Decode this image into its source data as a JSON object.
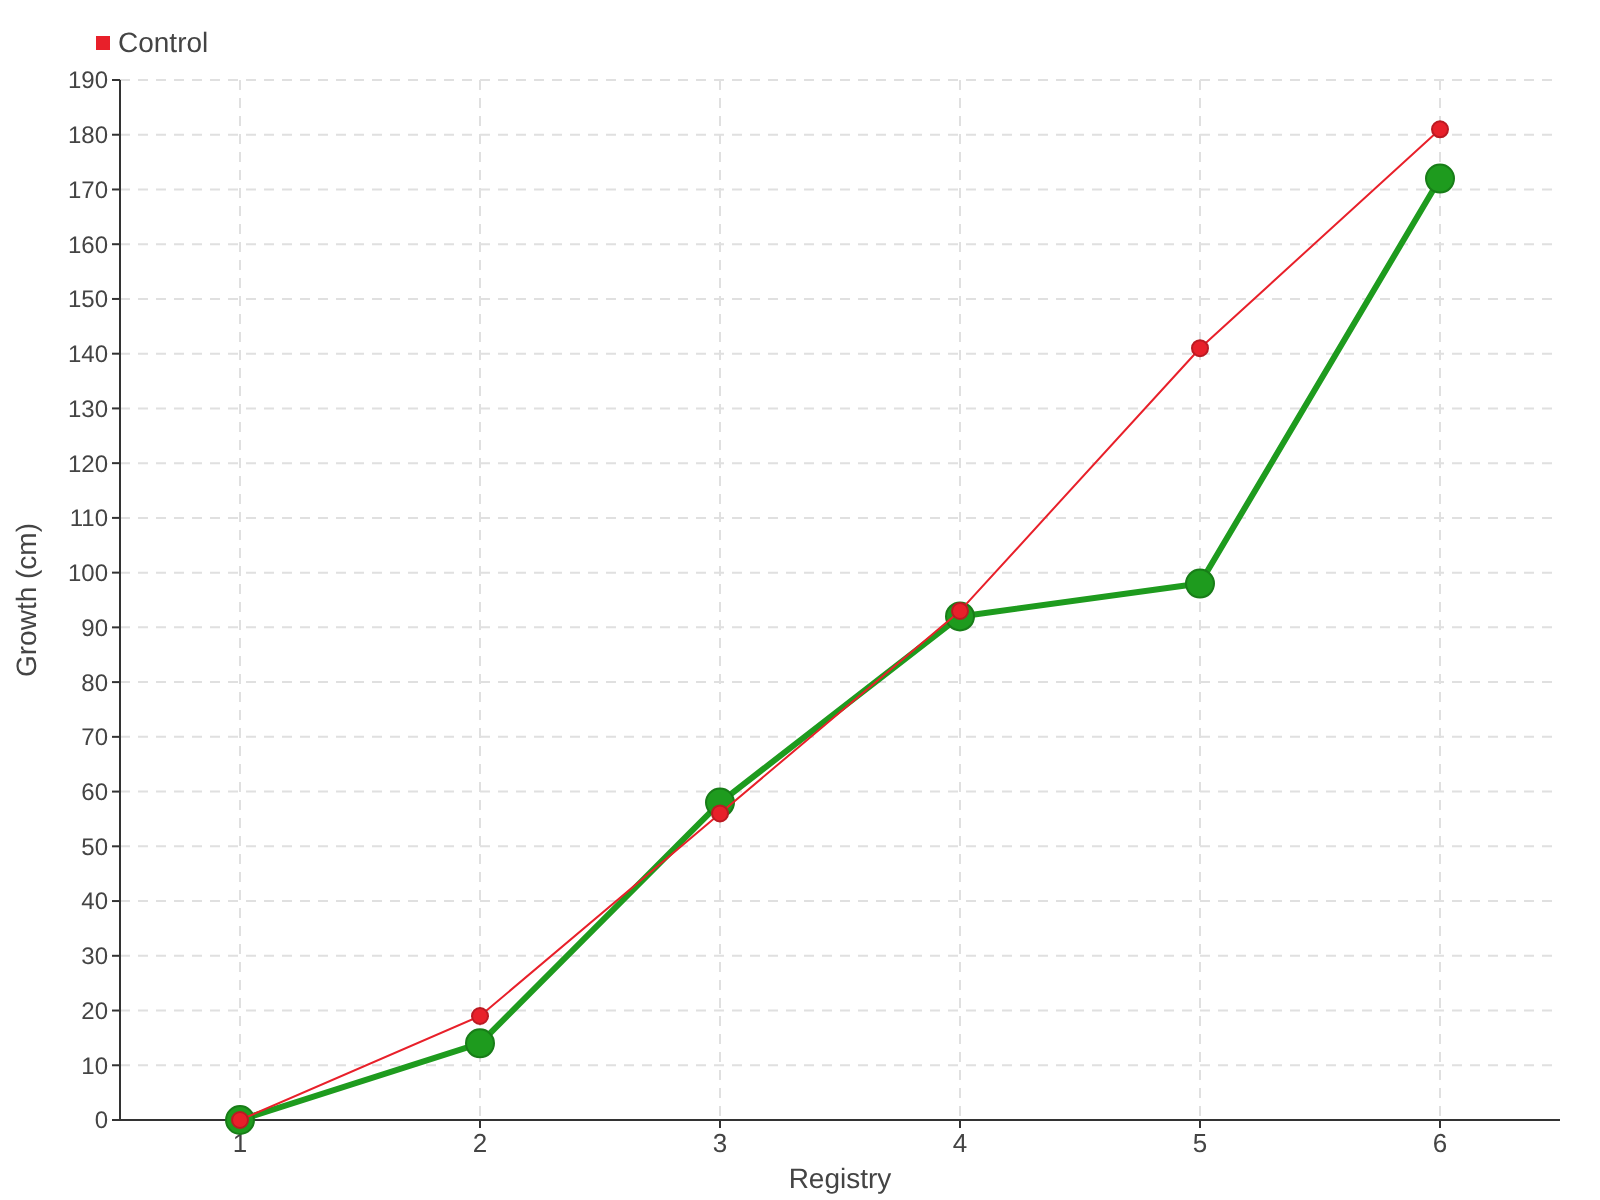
{
  "chart_data": {
    "type": "line",
    "xlabel": "Registry",
    "ylabel": "Growth (cm)",
    "x": [
      1,
      2,
      3,
      4,
      5,
      6
    ],
    "series": [
      {
        "color": "#1e9b1e",
        "values": [
          0,
          14,
          58,
          92,
          98,
          172
        ]
      },
      {
        "name": "Control",
        "color": "#e8202a",
        "values": [
          0,
          19,
          56,
          93,
          141,
          181
        ]
      }
    ],
    "xlim": [
      0.5,
      6.5
    ],
    "xticks": [
      1,
      2,
      3,
      4,
      5,
      6
    ],
    "ylim": [
      0,
      190
    ],
    "yticks": [
      0,
      10,
      20,
      30,
      40,
      50,
      60,
      70,
      80,
      90,
      100,
      110,
      120,
      130,
      140,
      150,
      160,
      170,
      180,
      190
    ],
    "grid": true,
    "legend": "top left",
    "marker": "circle",
    "line_style": "solid"
  }
}
